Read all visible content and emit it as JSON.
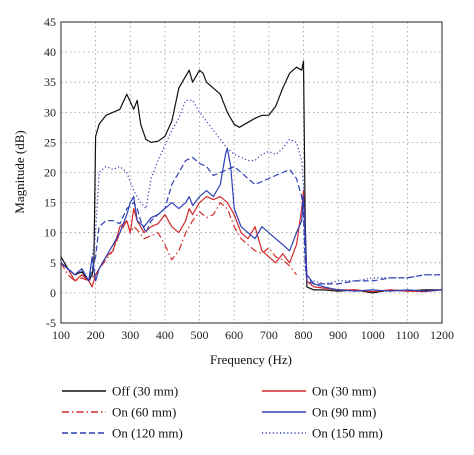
{
  "chart_data": {
    "type": "line",
    "title": "",
    "xlabel": "Frequency (Hz)",
    "ylabel": "Magnitude (dB)",
    "xlim": [
      100,
      1200
    ],
    "ylim": [
      -5,
      45
    ],
    "xticks": [
      100,
      200,
      300,
      400,
      500,
      600,
      700,
      800,
      900,
      1000,
      1100,
      1200
    ],
    "yticks": [
      -5,
      0,
      5,
      10,
      15,
      20,
      25,
      30,
      35,
      40,
      45
    ],
    "grid": true,
    "legend_position": "bottom",
    "series": [
      {
        "name": "Off (30 mm)",
        "color": "#111111",
        "dash": "solid",
        "x": [
          100,
          120,
          140,
          160,
          180,
          190,
          195,
          200,
          210,
          230,
          250,
          270,
          290,
          310,
          320,
          330,
          345,
          360,
          380,
          400,
          420,
          440,
          460,
          470,
          480,
          490,
          500,
          510,
          520,
          540,
          560,
          580,
          600,
          615,
          630,
          645,
          660,
          680,
          700,
          720,
          740,
          760,
          780,
          795,
          800,
          805,
          810,
          830,
          860,
          900,
          950,
          1000,
          1050,
          1100,
          1150,
          1200
        ],
        "y": [
          6,
          4,
          3,
          3.5,
          2,
          3,
          5,
          26,
          28,
          29.5,
          30,
          30.5,
          33,
          30.5,
          32,
          28,
          25.5,
          25,
          25.2,
          26,
          28.5,
          34,
          36,
          37,
          35,
          36,
          37,
          36.5,
          35,
          34,
          33,
          30,
          28,
          27.5,
          28,
          28.5,
          29,
          29.5,
          29.5,
          31,
          34,
          36.5,
          37.5,
          37,
          38.5,
          12,
          1,
          0.5,
          0.5,
          0.3,
          0.5,
          0,
          0.5,
          0.3,
          0.5,
          0.5
        ]
      },
      {
        "name": "On (30 mm)",
        "color": "#d42a2a",
        "dash": "solid",
        "x": [
          100,
          120,
          140,
          160,
          180,
          190,
          200,
          210,
          230,
          250,
          270,
          290,
          300,
          310,
          320,
          340,
          360,
          380,
          400,
          420,
          440,
          460,
          470,
          480,
          500,
          520,
          540,
          560,
          580,
          600,
          620,
          640,
          660,
          680,
          700,
          720,
          740,
          760,
          780,
          795,
          800,
          810,
          830,
          860,
          900,
          950,
          1000,
          1050,
          1100,
          1150,
          1200
        ],
        "y": [
          5,
          4,
          2,
          3,
          2,
          1,
          3,
          4,
          6,
          7,
          11,
          12,
          10,
          14,
          12,
          10,
          11,
          11.5,
          13,
          11,
          10,
          12,
          14,
          13,
          15,
          16,
          15.5,
          16,
          15,
          13,
          10,
          9,
          11,
          7,
          6,
          5,
          6.5,
          5,
          8,
          14,
          17,
          2,
          1,
          0.8,
          0.5,
          0.5,
          0.2,
          0.5,
          0.3,
          0.2,
          0.5
        ]
      },
      {
        "name": "On (60 mm)",
        "color": "#d42a2a",
        "dash": "dashdot",
        "x": [
          100,
          120,
          140,
          160,
          180,
          200,
          210,
          230,
          250,
          270,
          290,
          300,
          310,
          320,
          340,
          360,
          380,
          400,
          420,
          440,
          460,
          480,
          500,
          520,
          540,
          560,
          580,
          600,
          620,
          640,
          660,
          680,
          700,
          720,
          740,
          760,
          780
        ],
        "y": [
          5,
          3,
          2,
          2.5,
          2,
          3,
          4,
          5.5,
          7,
          10,
          12,
          10,
          11,
          10.5,
          9,
          9.5,
          10,
          8,
          5.5,
          7,
          10,
          12,
          13.5,
          12.5,
          13,
          15,
          14,
          11,
          9,
          8,
          7,
          6.5,
          7.5,
          6,
          5.5,
          4.5,
          3
        ]
      },
      {
        "name": "On (90 mm)",
        "color": "#2d3fb5",
        "dash": "solid",
        "x": [
          100,
          120,
          140,
          160,
          180,
          190,
          200,
          210,
          230,
          250,
          270,
          290,
          300,
          310,
          320,
          340,
          360,
          380,
          400,
          420,
          440,
          460,
          470,
          480,
          500,
          520,
          540,
          560,
          575,
          580,
          590,
          600,
          620,
          640,
          660,
          680,
          700,
          720,
          740,
          760,
          780,
          795,
          800,
          810,
          830,
          860,
          900,
          950,
          1000,
          1050,
          1100,
          1150,
          1200
        ],
        "y": [
          5,
          4,
          3,
          4,
          2,
          6,
          2,
          4,
          6,
          8,
          10,
          13,
          15,
          16,
          12,
          11,
          12.5,
          13,
          14,
          15,
          14,
          15,
          16,
          14.5,
          16,
          17,
          16,
          18,
          23,
          24,
          21,
          14,
          11,
          10,
          9,
          11,
          10,
          9,
          8,
          7,
          10,
          12,
          16,
          3,
          1.5,
          1,
          0.5,
          0.3,
          0.5,
          0.3,
          0.5,
          0.3,
          0.5
        ]
      },
      {
        "name": "On (120 mm)",
        "color": "#2d3fb5",
        "dash": "dashed",
        "x": [
          100,
          120,
          140,
          160,
          180,
          190,
          200,
          210,
          230,
          250,
          270,
          290,
          310,
          320,
          330,
          345,
          360,
          380,
          400,
          420,
          440,
          460,
          480,
          500,
          520,
          540,
          560,
          580,
          600,
          620,
          640,
          660,
          680,
          700,
          720,
          740,
          760,
          780,
          795,
          800,
          805,
          810,
          830,
          860,
          900,
          950,
          1000,
          1050,
          1100,
          1150,
          1200
        ],
        "y": [
          5,
          4,
          3,
          4,
          2,
          4,
          6,
          11,
          12,
          12,
          11.5,
          14,
          15,
          14,
          12,
          10,
          12,
          13,
          14,
          18,
          20,
          22,
          22.5,
          21.5,
          21,
          19.5,
          20,
          20.5,
          21,
          20,
          19,
          18,
          18.5,
          19,
          19.5,
          20,
          20.5,
          19,
          16,
          13,
          5,
          2,
          1.5,
          1.5,
          1.5,
          2,
          2,
          2.5,
          2.5,
          3,
          3
        ]
      },
      {
        "name": "On (150 mm)",
        "color": "#2d3fb5",
        "dash": "dotted",
        "x": [
          100,
          120,
          140,
          160,
          180,
          190,
          200,
          210,
          230,
          250,
          270,
          290,
          310,
          320,
          330,
          345,
          360,
          380,
          400,
          420,
          440,
          460,
          480,
          500,
          520,
          540,
          560,
          580,
          600,
          620,
          640,
          660,
          680,
          700,
          720,
          740,
          760,
          780,
          795,
          800,
          805,
          810,
          830,
          860,
          900,
          950,
          1000,
          1050,
          1100,
          1150,
          1200
        ],
        "y": [
          5,
          4,
          3,
          4,
          2,
          6,
          10,
          20,
          21,
          20.5,
          21,
          20,
          17,
          16,
          15,
          14,
          19,
          22,
          24.5,
          27,
          29,
          32,
          32,
          30,
          28.5,
          27,
          25.5,
          24,
          23,
          22.5,
          22,
          22,
          23,
          23.5,
          23,
          24,
          25.5,
          25,
          22,
          18,
          4,
          2,
          2,
          1.5,
          2,
          2,
          2.5,
          2.5,
          2.5,
          3,
          3
        ]
      }
    ]
  }
}
